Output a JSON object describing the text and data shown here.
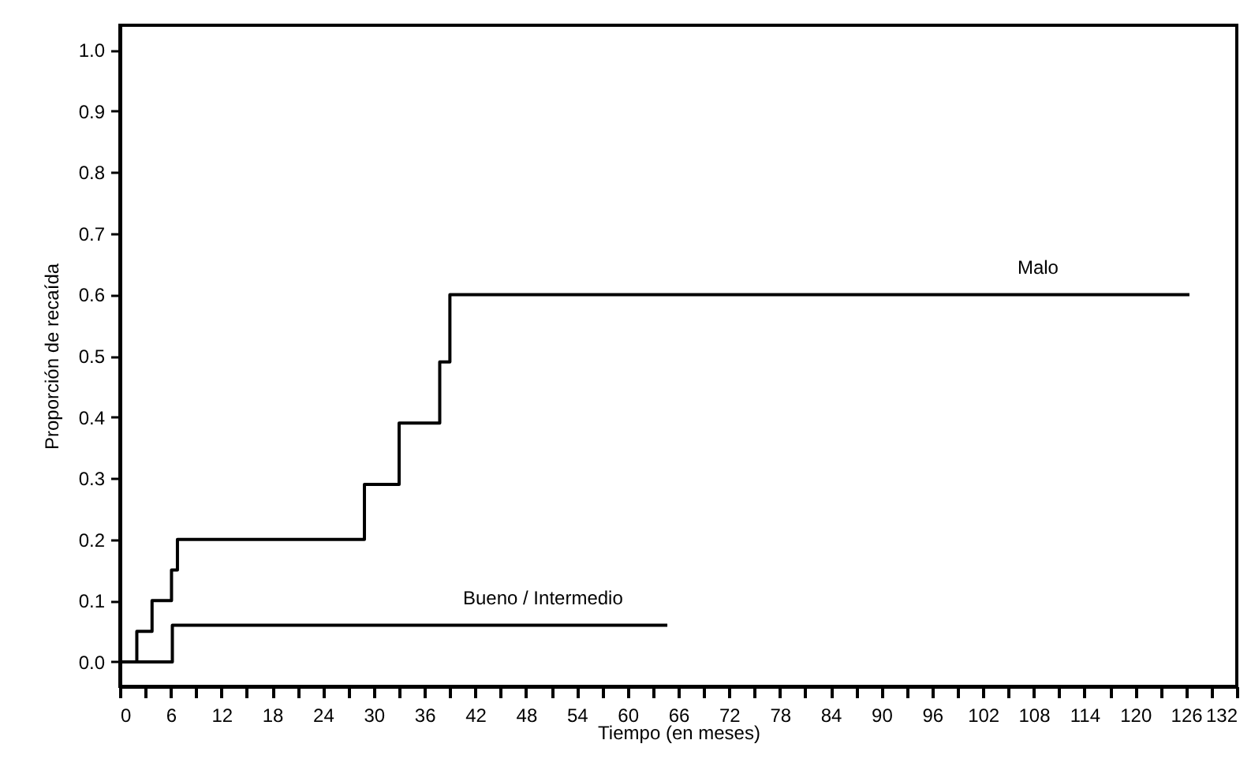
{
  "chart_data": {
    "type": "step",
    "xlabel": "Tiempo (en meses)",
    "ylabel": "Proporción de recaída",
    "series": [
      {
        "color": "#000000",
        "x": [
          0,
          2,
          3.8,
          6.1,
          6.8,
          28.9,
          33,
          37.8,
          39,
          126.4
        ],
        "values": [
          0,
          0.05,
          0.1,
          0.15,
          0.2,
          0.29,
          0.39,
          0.49,
          0.6,
          0.6
        ]
      },
      {
        "color": "#000000",
        "x": [
          0,
          6.2,
          64.7
        ],
        "values": [
          0,
          0.06,
          0.06
        ]
      }
    ],
    "annotations": [
      {
        "text": "Malo",
        "x": 108.5,
        "y": 0.6
      },
      {
        "text": "Bueno / Intermedio",
        "x": 50,
        "y": 0.06
      }
    ],
    "xlim": [
      0,
      132
    ],
    "xticks": [
      0,
      {
        "value": 3,
        "label": null
      },
      6,
      {
        "value": 9,
        "label": null
      },
      12,
      {
        "value": 15,
        "label": null
      },
      18,
      {
        "value": 21,
        "label": null
      },
      24,
      {
        "value": 27,
        "label": null
      },
      30,
      {
        "value": 33,
        "label": null
      },
      36,
      {
        "value": 39,
        "label": null
      },
      42,
      {
        "value": 45,
        "label": null
      },
      48,
      {
        "value": 51,
        "label": null
      },
      54,
      {
        "value": 57,
        "label": null
      },
      60,
      {
        "value": 63,
        "label": null
      },
      66,
      {
        "value": 69,
        "label": null
      },
      72,
      {
        "value": 75,
        "label": null
      },
      78,
      {
        "value": 81,
        "label": null
      },
      84,
      {
        "value": 87,
        "label": null
      },
      90,
      {
        "value": 93,
        "label": null
      },
      96,
      {
        "value": 99,
        "label": null
      },
      102,
      {
        "value": 105,
        "label": null
      },
      108,
      {
        "value": 111,
        "label": null
      },
      114,
      {
        "value": 117,
        "label": null
      },
      120,
      {
        "value": 123,
        "label": null
      },
      126,
      {
        "value": 129,
        "label": null
      },
      132
    ],
    "ylim": [
      -0.04,
      1.04
    ],
    "yticks": [
      {
        "value": 0,
        "label": "0.0"
      },
      0.1,
      0.2,
      0.3,
      0.4,
      0.5,
      0.6,
      0.7,
      0.8,
      0.9,
      {
        "value": 1,
        "label": "1.0"
      }
    ],
    "grid": false
  }
}
